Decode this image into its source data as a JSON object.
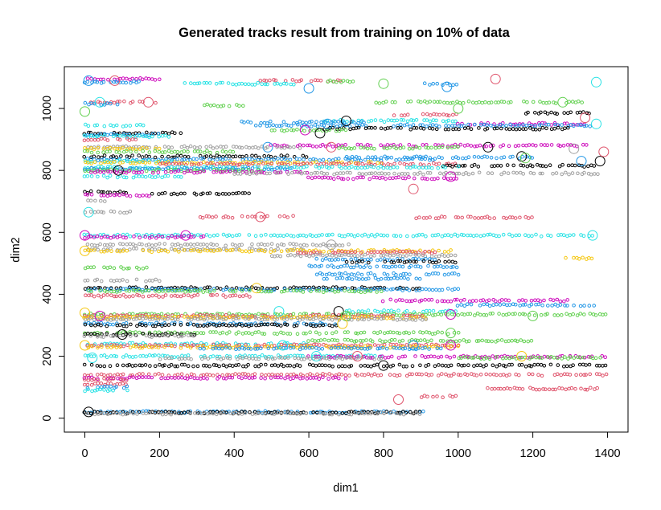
{
  "chart_data": {
    "type": "scatter",
    "title": "Generated tracks result from training on 10% of data",
    "xlabel": "dim1",
    "ylabel": "dim2",
    "xlim": [
      -55,
      1455
    ],
    "ylim": [
      -45,
      1135
    ],
    "xticks": [
      0,
      200,
      400,
      600,
      800,
      1000,
      1200,
      1400
    ],
    "yticks": [
      0,
      200,
      400,
      600,
      800,
      1000
    ],
    "grid": false,
    "legend": "none",
    "marker": "open-circle",
    "palette": {
      "black": "#000000",
      "red": "#DF536B",
      "green": "#61D04F",
      "blue": "#2297E6",
      "cyan": "#28E2E5",
      "magenta": "#CD0BBC",
      "yellow": "#F5C710",
      "gray": "#9E9E9E"
    },
    "tracks": [
      {
        "y": 1095,
        "x": [
          0,
          200
        ],
        "color": "magenta"
      },
      {
        "y": 1090,
        "x": [
          470,
          700
        ],
        "color": "red"
      },
      {
        "y": 1088,
        "x": [
          650,
          720
        ],
        "color": "green"
      },
      {
        "y": 1085,
        "x": [
          0,
          160
        ],
        "color": "blue"
      },
      {
        "y": 1080,
        "x": [
          240,
          560
        ],
        "color": "cyan"
      },
      {
        "y": 1078,
        "x": [
          900,
          1000
        ],
        "color": "blue"
      },
      {
        "y": 1020,
        "x": [
          0,
          190
        ],
        "color": "red"
      },
      {
        "y": 1020,
        "x": [
          780,
          1340
        ],
        "color": "green"
      },
      {
        "y": 1015,
        "x": [
          0,
          100
        ],
        "color": "blue"
      },
      {
        "y": 1010,
        "x": [
          320,
          440
        ],
        "color": "green"
      },
      {
        "y": 985,
        "x": [
          1180,
          1360
        ],
        "color": "black"
      },
      {
        "y": 980,
        "x": [
          830,
          1000
        ],
        "color": "red"
      },
      {
        "y": 960,
        "x": [
          640,
          1000
        ],
        "color": "cyan"
      },
      {
        "y": 955,
        "x": [
          420,
          760
        ],
        "color": "blue"
      },
      {
        "y": 950,
        "x": [
          1000,
          1350
        ],
        "color": "magenta"
      },
      {
        "y": 945,
        "x": [
          460,
          760
        ],
        "color": "blue"
      },
      {
        "y": 945,
        "x": [
          820,
          1360
        ],
        "color": "blue"
      },
      {
        "y": 945,
        "x": [
          0,
          160
        ],
        "color": "cyan"
      },
      {
        "y": 935,
        "x": [
          640,
          1300
        ],
        "color": "black"
      },
      {
        "y": 930,
        "x": [
          500,
          700
        ],
        "color": "green"
      },
      {
        "y": 920,
        "x": [
          0,
          260
        ],
        "color": "black"
      },
      {
        "y": 915,
        "x": [
          0,
          200
        ],
        "color": "blue"
      },
      {
        "y": 910,
        "x": [
          0,
          240
        ],
        "color": "cyan"
      },
      {
        "y": 900,
        "x": [
          0,
          140
        ],
        "color": "red"
      },
      {
        "y": 880,
        "x": [
          500,
          1360
        ],
        "color": "magenta"
      },
      {
        "y": 875,
        "x": [
          0,
          580
        ],
        "color": "gray"
      },
      {
        "y": 873,
        "x": [
          680,
          1000
        ],
        "color": "green"
      },
      {
        "y": 870,
        "x": [
          0,
          200
        ],
        "color": "yellow"
      },
      {
        "y": 860,
        "x": [
          0,
          400
        ],
        "color": "green"
      },
      {
        "y": 845,
        "x": [
          0,
          600
        ],
        "color": "black"
      },
      {
        "y": 842,
        "x": [
          700,
          1200
        ],
        "color": "blue"
      },
      {
        "y": 835,
        "x": [
          0,
          960
        ],
        "color": "blue"
      },
      {
        "y": 830,
        "x": [
          0,
          240
        ],
        "color": "cyan"
      },
      {
        "y": 825,
        "x": [
          0,
          800
        ],
        "color": "yellow"
      },
      {
        "y": 820,
        "x": [
          200,
          1000
        ],
        "color": "red"
      },
      {
        "y": 815,
        "x": [
          960,
          1370
        ],
        "color": "black"
      },
      {
        "y": 810,
        "x": [
          0,
          1000
        ],
        "color": "cyan"
      },
      {
        "y": 805,
        "x": [
          0,
          560
        ],
        "color": "blue"
      },
      {
        "y": 800,
        "x": [
          0,
          480
        ],
        "color": "green"
      },
      {
        "y": 795,
        "x": [
          0,
          600
        ],
        "color": "magenta"
      },
      {
        "y": 790,
        "x": [
          400,
          1380
        ],
        "color": "gray"
      },
      {
        "y": 780,
        "x": [
          0,
          260
        ],
        "color": "cyan"
      },
      {
        "y": 775,
        "x": [
          600,
          1000
        ],
        "color": "magenta"
      },
      {
        "y": 730,
        "x": [
          0,
          120
        ],
        "color": "black"
      },
      {
        "y": 725,
        "x": [
          180,
          440
        ],
        "color": "black"
      },
      {
        "y": 720,
        "x": [
          0,
          180
        ],
        "color": "magenta"
      },
      {
        "y": 700,
        "x": [
          0,
          60
        ],
        "color": "gray"
      },
      {
        "y": 665,
        "x": [
          0,
          130
        ],
        "color": "gray"
      },
      {
        "y": 650,
        "x": [
          300,
          560
        ],
        "color": "red"
      },
      {
        "y": 648,
        "x": [
          880,
          1200
        ],
        "color": "red"
      },
      {
        "y": 590,
        "x": [
          0,
          1370
        ],
        "color": "cyan"
      },
      {
        "y": 585,
        "x": [
          0,
          320
        ],
        "color": "magenta"
      },
      {
        "y": 560,
        "x": [
          0,
          720
        ],
        "color": "gray"
      },
      {
        "y": 545,
        "x": [
          0,
          600
        ],
        "color": "gray"
      },
      {
        "y": 540,
        "x": [
          0,
          1000
        ],
        "color": "yellow"
      },
      {
        "y": 535,
        "x": [
          560,
          940
        ],
        "color": "red"
      },
      {
        "y": 525,
        "x": [
          500,
          1000
        ],
        "color": "gray"
      },
      {
        "y": 515,
        "x": [
          1290,
          1370
        ],
        "color": "yellow"
      },
      {
        "y": 512,
        "x": [
          620,
          940
        ],
        "color": "blue"
      },
      {
        "y": 505,
        "x": [
          700,
          1000
        ],
        "color": "black"
      },
      {
        "y": 490,
        "x": [
          600,
          1000
        ],
        "color": "blue"
      },
      {
        "y": 485,
        "x": [
          0,
          180
        ],
        "color": "green"
      },
      {
        "y": 465,
        "x": [
          620,
          1000
        ],
        "color": "blue"
      },
      {
        "y": 450,
        "x": [
          640,
          900
        ],
        "color": "blue"
      },
      {
        "y": 445,
        "x": [
          0,
          200
        ],
        "color": "gray"
      },
      {
        "y": 420,
        "x": [
          0,
          900
        ],
        "color": "black"
      },
      {
        "y": 415,
        "x": [
          0,
          1000
        ],
        "color": "blue"
      },
      {
        "y": 410,
        "x": [
          0,
          800
        ],
        "color": "green"
      },
      {
        "y": 395,
        "x": [
          0,
          440
        ],
        "color": "red"
      },
      {
        "y": 380,
        "x": [
          800,
          1300
        ],
        "color": "magenta"
      },
      {
        "y": 365,
        "x": [
          1000,
          1370
        ],
        "color": "blue"
      },
      {
        "y": 345,
        "x": [
          700,
          1000
        ],
        "color": "cyan"
      },
      {
        "y": 335,
        "x": [
          0,
          1400
        ],
        "color": "green"
      },
      {
        "y": 330,
        "x": [
          0,
          920
        ],
        "color": "red"
      },
      {
        "y": 325,
        "x": [
          0,
          920
        ],
        "color": "yellow"
      },
      {
        "y": 320,
        "x": [
          0,
          920
        ],
        "color": "gray"
      },
      {
        "y": 305,
        "x": [
          0,
          680
        ],
        "color": "blue"
      },
      {
        "y": 300,
        "x": [
          0,
          680
        ],
        "color": "black"
      },
      {
        "y": 275,
        "x": [
          0,
          1000
        ],
        "color": "green"
      },
      {
        "y": 270,
        "x": [
          0,
          300
        ],
        "color": "black"
      },
      {
        "y": 265,
        "x": [
          0,
          300
        ],
        "color": "gray"
      },
      {
        "y": 250,
        "x": [
          600,
          1200
        ],
        "color": "green"
      },
      {
        "y": 240,
        "x": [
          0,
          600
        ],
        "color": "cyan"
      },
      {
        "y": 235,
        "x": [
          0,
          1000
        ],
        "color": "red"
      },
      {
        "y": 230,
        "x": [
          0,
          1000
        ],
        "color": "yellow"
      },
      {
        "y": 225,
        "x": [
          300,
          960
        ],
        "color": "blue"
      },
      {
        "y": 200,
        "x": [
          0,
          800
        ],
        "color": "cyan"
      },
      {
        "y": 198,
        "x": [
          600,
          1400
        ],
        "color": "magenta"
      },
      {
        "y": 195,
        "x": [
          1000,
          1380
        ],
        "color": "green"
      },
      {
        "y": 193,
        "x": [
          200,
          800
        ],
        "color": "gray"
      },
      {
        "y": 170,
        "x": [
          0,
          1400
        ],
        "color": "black"
      },
      {
        "y": 140,
        "x": [
          0,
          1400
        ],
        "color": "red"
      },
      {
        "y": 130,
        "x": [
          0,
          700
        ],
        "color": "magenta"
      },
      {
        "y": 125,
        "x": [
          0,
          120
        ],
        "color": "red"
      },
      {
        "y": 110,
        "x": [
          0,
          120
        ],
        "color": "red"
      },
      {
        "y": 100,
        "x": [
          0,
          120
        ],
        "color": "blue"
      },
      {
        "y": 95,
        "x": [
          1080,
          1380
        ],
        "color": "red"
      },
      {
        "y": 90,
        "x": [
          0,
          120
        ],
        "color": "cyan"
      },
      {
        "y": 70,
        "x": [
          900,
          1000
        ],
        "color": "red"
      },
      {
        "y": 20,
        "x": [
          0,
          920
        ],
        "color": "blue"
      },
      {
        "y": 18,
        "x": [
          0,
          900
        ],
        "color": "black"
      },
      {
        "y": 15,
        "x": [
          0,
          900
        ],
        "color": "gray"
      }
    ],
    "starts": [
      {
        "x": 10,
        "y": 1090,
        "color": "blue"
      },
      {
        "x": 80,
        "y": 1090,
        "color": "red"
      },
      {
        "x": 1100,
        "y": 1095,
        "color": "red"
      },
      {
        "x": 1370,
        "y": 1085,
        "color": "cyan"
      },
      {
        "x": 600,
        "y": 1065,
        "color": "blue"
      },
      {
        "x": 970,
        "y": 1070,
        "color": "blue"
      },
      {
        "x": 800,
        "y": 1080,
        "color": "green"
      },
      {
        "x": 0,
        "y": 990,
        "color": "green"
      },
      {
        "x": 40,
        "y": 1020,
        "color": "cyan"
      },
      {
        "x": 170,
        "y": 1020,
        "color": "red"
      },
      {
        "x": 1280,
        "y": 1020,
        "color": "green"
      },
      {
        "x": 1000,
        "y": 1000,
        "color": "green"
      },
      {
        "x": 1340,
        "y": 970,
        "color": "red"
      },
      {
        "x": 700,
        "y": 960,
        "color": "black"
      },
      {
        "x": 650,
        "y": 950,
        "color": "blue"
      },
      {
        "x": 1370,
        "y": 950,
        "color": "cyan"
      },
      {
        "x": 590,
        "y": 930,
        "color": "magenta"
      },
      {
        "x": 630,
        "y": 920,
        "color": "black"
      },
      {
        "x": 1080,
        "y": 875,
        "color": "black"
      },
      {
        "x": 490,
        "y": 875,
        "color": "blue"
      },
      {
        "x": 660,
        "y": 875,
        "color": "red"
      },
      {
        "x": 1170,
        "y": 845,
        "color": "black"
      },
      {
        "x": 1180,
        "y": 840,
        "color": "green"
      },
      {
        "x": 1330,
        "y": 830,
        "color": "blue"
      },
      {
        "x": 1380,
        "y": 830,
        "color": "black"
      },
      {
        "x": 1390,
        "y": 860,
        "color": "red"
      },
      {
        "x": 1310,
        "y": 870,
        "color": "gray"
      },
      {
        "x": 90,
        "y": 800,
        "color": "black"
      },
      {
        "x": 980,
        "y": 780,
        "color": "magenta"
      },
      {
        "x": 10,
        "y": 665,
        "color": "cyan"
      },
      {
        "x": 880,
        "y": 740,
        "color": "red"
      },
      {
        "x": 470,
        "y": 650,
        "color": "red"
      },
      {
        "x": 0,
        "y": 590,
        "color": "magenta"
      },
      {
        "x": 270,
        "y": 590,
        "color": "magenta"
      },
      {
        "x": 1360,
        "y": 590,
        "color": "cyan"
      },
      {
        "x": 660,
        "y": 560,
        "color": "gray"
      },
      {
        "x": 0,
        "y": 540,
        "color": "yellow"
      },
      {
        "x": 460,
        "y": 420,
        "color": "yellow"
      },
      {
        "x": 0,
        "y": 340,
        "color": "yellow"
      },
      {
        "x": 40,
        "y": 330,
        "color": "magenta"
      },
      {
        "x": 520,
        "y": 345,
        "color": "cyan"
      },
      {
        "x": 680,
        "y": 345,
        "color": "black"
      },
      {
        "x": 700,
        "y": 330,
        "color": "green"
      },
      {
        "x": 690,
        "y": 305,
        "color": "yellow"
      },
      {
        "x": 980,
        "y": 335,
        "color": "magenta"
      },
      {
        "x": 1200,
        "y": 330,
        "color": "green"
      },
      {
        "x": 100,
        "y": 270,
        "color": "black"
      },
      {
        "x": 980,
        "y": 275,
        "color": "green"
      },
      {
        "x": 0,
        "y": 235,
        "color": "yellow"
      },
      {
        "x": 20,
        "y": 195,
        "color": "cyan"
      },
      {
        "x": 530,
        "y": 235,
        "color": "cyan"
      },
      {
        "x": 980,
        "y": 235,
        "color": "magenta"
      },
      {
        "x": 880,
        "y": 235,
        "color": "blue"
      },
      {
        "x": 620,
        "y": 200,
        "color": "cyan"
      },
      {
        "x": 730,
        "y": 200,
        "color": "red"
      },
      {
        "x": 1170,
        "y": 200,
        "color": "yellow"
      },
      {
        "x": 800,
        "y": 170,
        "color": "black"
      },
      {
        "x": 840,
        "y": 60,
        "color": "red"
      },
      {
        "x": 10,
        "y": 20,
        "color": "black"
      }
    ]
  }
}
